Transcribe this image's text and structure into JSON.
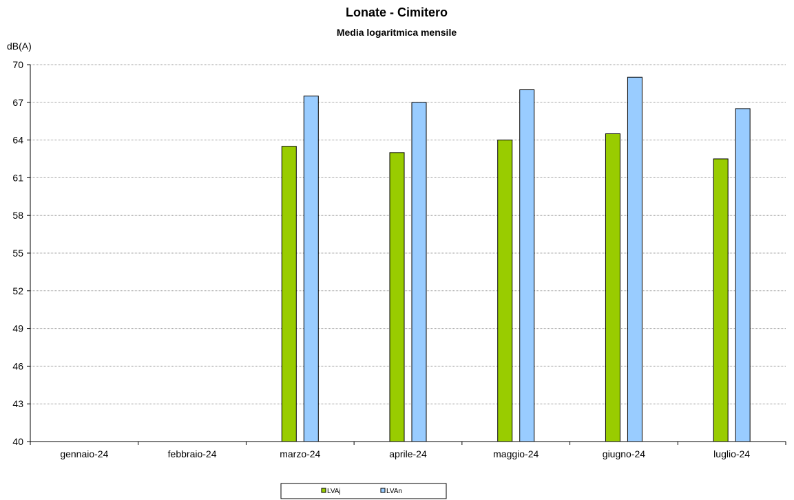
{
  "chart_data": {
    "type": "bar",
    "title": "Lonate - Cimitero",
    "subtitle": "Media logaritmica mensile",
    "ylabel": "dB(A)",
    "xlabel": "",
    "ylim": [
      40,
      70
    ],
    "yticks": [
      40,
      43,
      46,
      49,
      52,
      55,
      58,
      61,
      64,
      67,
      70
    ],
    "grid": true,
    "legend_position": "bottom",
    "categories": [
      "gennaio-24",
      "febbraio-24",
      "marzo-24",
      "aprile-24",
      "maggio-24",
      "giugno-24",
      "luglio-24"
    ],
    "series": [
      {
        "name": "LVAj",
        "color": "#99cc00",
        "values": [
          null,
          null,
          63.5,
          63.0,
          64.0,
          64.5,
          62.5
        ]
      },
      {
        "name": "LVAn",
        "color": "#99ccff",
        "values": [
          null,
          null,
          67.5,
          67.0,
          68.0,
          69.0,
          66.5
        ]
      }
    ]
  }
}
